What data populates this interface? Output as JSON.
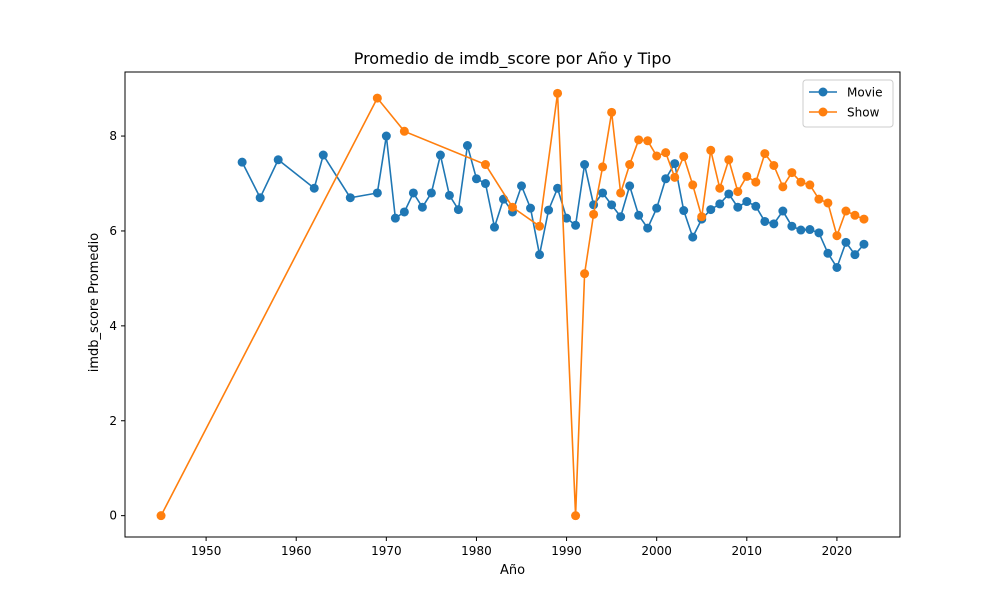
{
  "chart_data": {
    "type": "line",
    "title": "Promedio de imdb_score por Año y Tipo",
    "xlabel": "Año",
    "ylabel": "imdb_score Promedio",
    "xlim": [
      1941,
      2027
    ],
    "ylim": [
      -0.45,
      9.35
    ],
    "xticks": [
      1950,
      1960,
      1970,
      1980,
      1990,
      2000,
      2010,
      2020
    ],
    "yticks": [
      0,
      2,
      4,
      6,
      8
    ],
    "grid": false,
    "legend_position": "top-right",
    "series": [
      {
        "name": "Movie",
        "color": "#1f77b4",
        "marker": "circle",
        "points": [
          [
            1954,
            7.45
          ],
          [
            1956,
            6.7
          ],
          [
            1958,
            7.5
          ],
          [
            1962,
            6.9
          ],
          [
            1963,
            7.6
          ],
          [
            1966,
            6.7
          ],
          [
            1969,
            6.8
          ],
          [
            1970,
            8.0
          ],
          [
            1971,
            6.27
          ],
          [
            1972,
            6.4
          ],
          [
            1973,
            6.8
          ],
          [
            1974,
            6.5
          ],
          [
            1975,
            6.8
          ],
          [
            1976,
            7.6
          ],
          [
            1977,
            6.75
          ],
          [
            1978,
            6.45
          ],
          [
            1979,
            7.8
          ],
          [
            1980,
            7.1
          ],
          [
            1981,
            7.0
          ],
          [
            1982,
            6.08
          ],
          [
            1983,
            6.67
          ],
          [
            1984,
            6.4
          ],
          [
            1985,
            6.95
          ],
          [
            1986,
            6.48
          ],
          [
            1987,
            5.5
          ],
          [
            1988,
            6.44
          ],
          [
            1989,
            6.9
          ],
          [
            1990,
            6.27
          ],
          [
            1991,
            6.12
          ],
          [
            1992,
            7.4
          ],
          [
            1993,
            6.55
          ],
          [
            1994,
            6.8
          ],
          [
            1995,
            6.55
          ],
          [
            1996,
            6.3
          ],
          [
            1997,
            6.95
          ],
          [
            1998,
            6.33
          ],
          [
            1999,
            6.06
          ],
          [
            2000,
            6.48
          ],
          [
            2001,
            7.1
          ],
          [
            2002,
            7.42
          ],
          [
            2003,
            6.43
          ],
          [
            2004,
            5.87
          ],
          [
            2005,
            6.25
          ],
          [
            2006,
            6.45
          ],
          [
            2007,
            6.57
          ],
          [
            2008,
            6.78
          ],
          [
            2009,
            6.5
          ],
          [
            2010,
            6.62
          ],
          [
            2011,
            6.52
          ],
          [
            2012,
            6.2
          ],
          [
            2013,
            6.15
          ],
          [
            2014,
            6.42
          ],
          [
            2015,
            6.1
          ],
          [
            2016,
            6.02
          ],
          [
            2017,
            6.03
          ],
          [
            2018,
            5.96
          ],
          [
            2019,
            5.53
          ],
          [
            2020,
            5.23
          ],
          [
            2021,
            5.76
          ],
          [
            2022,
            5.5
          ],
          [
            2023,
            5.72
          ]
        ]
      },
      {
        "name": "Show",
        "color": "#ff7f0e",
        "marker": "circle",
        "points": [
          [
            1945,
            0.0
          ],
          [
            1969,
            8.8
          ],
          [
            1972,
            8.1
          ],
          [
            1981,
            7.4
          ],
          [
            1984,
            6.5
          ],
          [
            1987,
            6.1
          ],
          [
            1989,
            8.9
          ],
          [
            1991,
            0.0
          ],
          [
            1992,
            5.1
          ],
          [
            1993,
            6.35
          ],
          [
            1994,
            7.35
          ],
          [
            1995,
            8.5
          ],
          [
            1996,
            6.8
          ],
          [
            1997,
            7.4
          ],
          [
            1998,
            7.92
          ],
          [
            1999,
            7.9
          ],
          [
            2000,
            7.58
          ],
          [
            2001,
            7.65
          ],
          [
            2002,
            7.13
          ],
          [
            2003,
            7.57
          ],
          [
            2004,
            6.97
          ],
          [
            2005,
            6.3
          ],
          [
            2006,
            7.7
          ],
          [
            2007,
            6.9
          ],
          [
            2008,
            7.5
          ],
          [
            2009,
            6.83
          ],
          [
            2010,
            7.15
          ],
          [
            2011,
            7.03
          ],
          [
            2012,
            7.63
          ],
          [
            2013,
            7.38
          ],
          [
            2014,
            6.93
          ],
          [
            2015,
            7.23
          ],
          [
            2016,
            7.03
          ],
          [
            2017,
            6.97
          ],
          [
            2018,
            6.67
          ],
          [
            2019,
            6.59
          ],
          [
            2020,
            5.9
          ],
          [
            2021,
            6.42
          ],
          [
            2022,
            6.33
          ],
          [
            2023,
            6.25
          ]
        ]
      }
    ]
  }
}
